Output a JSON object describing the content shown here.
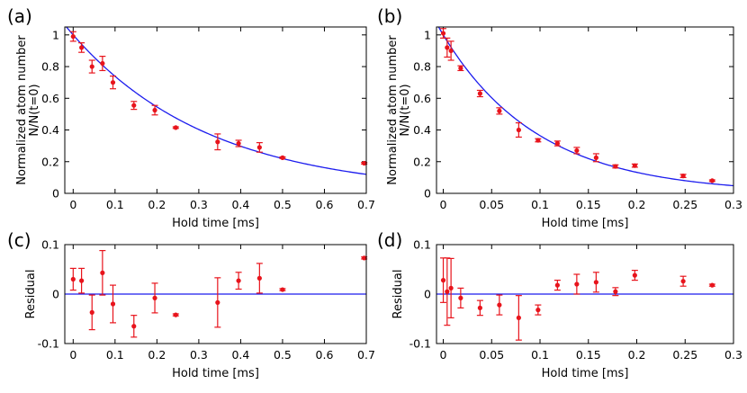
{
  "colors": {
    "data": "#e8141c",
    "fit": "#1c1cee",
    "axes": "#000000"
  },
  "chart_data": [
    {
      "panel": "(a)",
      "type": "scatter",
      "xlabel": "Hold time [ms]",
      "ylabel": [
        "Normalized atom number",
        "N/N(t=0)"
      ],
      "xlim": [
        -0.02,
        0.7
      ],
      "ylim": [
        0,
        1.05
      ],
      "xticks": [
        "0",
        "0.1",
        "0.2",
        "0.3",
        "0.4",
        "0.5",
        "0.6",
        "0.7"
      ],
      "xtick_values": [
        0,
        0.1,
        0.2,
        0.3,
        0.4,
        0.5,
        0.6,
        0.7
      ],
      "yticks": [
        "0",
        "0.2",
        "0.4",
        "0.6",
        "0.8",
        "1"
      ],
      "ytick_values": [
        0,
        0.2,
        0.4,
        0.6,
        0.8,
        1
      ],
      "series": [
        {
          "kind": "points",
          "x": [
            0.0,
            0.02,
            0.045,
            0.07,
            0.095,
            0.145,
            0.195,
            0.245,
            0.345,
            0.395,
            0.445,
            0.5,
            0.695
          ],
          "y": [
            0.99,
            0.92,
            0.8,
            0.82,
            0.7,
            0.555,
            0.525,
            0.415,
            0.325,
            0.315,
            0.29,
            0.225,
            0.19
          ],
          "err": [
            0.03,
            0.03,
            0.04,
            0.045,
            0.04,
            0.025,
            0.03,
            0.005,
            0.05,
            0.02,
            0.03,
            0.005,
            0.005
          ]
        },
        {
          "kind": "fit",
          "model": "exp",
          "a": 1.0,
          "tau": 0.33
        }
      ]
    },
    {
      "panel": "(b)",
      "type": "scatter",
      "xlabel": "Hold time [ms]",
      "ylabel": [
        "Normalized atom number",
        "N/N(t=0)"
      ],
      "xlim": [
        -0.007,
        0.3
      ],
      "ylim": [
        0,
        1.05
      ],
      "xticks": [
        "0",
        "0.05",
        "0.1",
        "0.15",
        "0.2",
        "0.25",
        "0.3"
      ],
      "xtick_values": [
        0,
        0.05,
        0.1,
        0.15,
        0.2,
        0.25,
        0.3
      ],
      "yticks": [
        "0",
        "0.2",
        "0.4",
        "0.6",
        "0.8",
        "1"
      ],
      "ytick_values": [
        0,
        0.2,
        0.4,
        0.6,
        0.8,
        1
      ],
      "series": [
        {
          "kind": "points",
          "x": [
            0.0,
            0.004,
            0.008,
            0.018,
            0.038,
            0.058,
            0.078,
            0.098,
            0.118,
            0.138,
            0.158,
            0.178,
            0.198,
            0.248,
            0.278
          ],
          "y": [
            1.01,
            0.92,
            0.9,
            0.79,
            0.63,
            0.52,
            0.4,
            0.335,
            0.315,
            0.27,
            0.225,
            0.17,
            0.175,
            0.11,
            0.08
          ],
          "err": [
            0.03,
            0.06,
            0.06,
            0.015,
            0.02,
            0.02,
            0.045,
            0.01,
            0.015,
            0.02,
            0.025,
            0.01,
            0.01,
            0.01,
            0.005
          ]
        },
        {
          "kind": "fit",
          "model": "exp",
          "a": 1.0,
          "tau": 0.099
        }
      ]
    },
    {
      "panel": "(c)",
      "type": "scatter",
      "xlabel": "Hold time [ms]",
      "ylabel": [
        "Residual"
      ],
      "xlim": [
        -0.02,
        0.7
      ],
      "ylim": [
        -0.1,
        0.1
      ],
      "xticks": [
        "0",
        "0.1",
        "0.2",
        "0.3",
        "0.4",
        "0.5",
        "0.6",
        "0.7"
      ],
      "xtick_values": [
        0,
        0.1,
        0.2,
        0.3,
        0.4,
        0.5,
        0.6,
        0.7
      ],
      "yticks": [
        "-0.1",
        "0",
        "0.1"
      ],
      "ytick_values": [
        -0.1,
        0,
        0.1
      ],
      "series": [
        {
          "kind": "points",
          "x": [
            0.0,
            0.02,
            0.045,
            0.07,
            0.095,
            0.145,
            0.195,
            0.245,
            0.345,
            0.395,
            0.445,
            0.5,
            0.695
          ],
          "y": [
            0.03,
            0.027,
            -0.037,
            0.043,
            -0.02,
            -0.065,
            -0.008,
            -0.042,
            -0.017,
            0.027,
            0.032,
            0.009,
            0.073
          ],
          "err": [
            0.022,
            0.025,
            0.035,
            0.045,
            0.038,
            0.022,
            0.03,
            0.002,
            0.05,
            0.017,
            0.03,
            0.002,
            0.002
          ]
        },
        {
          "kind": "hline",
          "y": 0
        }
      ]
    },
    {
      "panel": "(d)",
      "type": "scatter",
      "xlabel": "Hold time [ms]",
      "ylabel": [
        "Residual"
      ],
      "xlim": [
        -0.007,
        0.3
      ],
      "ylim": [
        -0.1,
        0.1
      ],
      "xticks": [
        "0",
        "0.05",
        "0.1",
        "0.15",
        "0.2",
        "0.25",
        "0.3"
      ],
      "xtick_values": [
        0,
        0.05,
        0.1,
        0.15,
        0.2,
        0.25,
        0.3
      ],
      "yticks": [
        "-0.1",
        "0",
        "0.1"
      ],
      "ytick_values": [
        -0.1,
        0,
        0.1
      ],
      "series": [
        {
          "kind": "points",
          "x": [
            0.0,
            0.004,
            0.008,
            0.018,
            0.038,
            0.058,
            0.078,
            0.098,
            0.118,
            0.138,
            0.158,
            0.178,
            0.198,
            0.248,
            0.278
          ],
          "y": [
            0.028,
            0.005,
            0.012,
            -0.008,
            -0.028,
            -0.022,
            -0.048,
            -0.032,
            0.018,
            0.02,
            0.024,
            0.005,
            0.038,
            0.026,
            0.018
          ],
          "err": [
            0.045,
            0.068,
            0.06,
            0.02,
            0.015,
            0.02,
            0.045,
            0.01,
            0.01,
            0.02,
            0.02,
            0.008,
            0.01,
            0.01,
            0.002
          ]
        },
        {
          "kind": "hline",
          "y": 0
        }
      ]
    }
  ]
}
